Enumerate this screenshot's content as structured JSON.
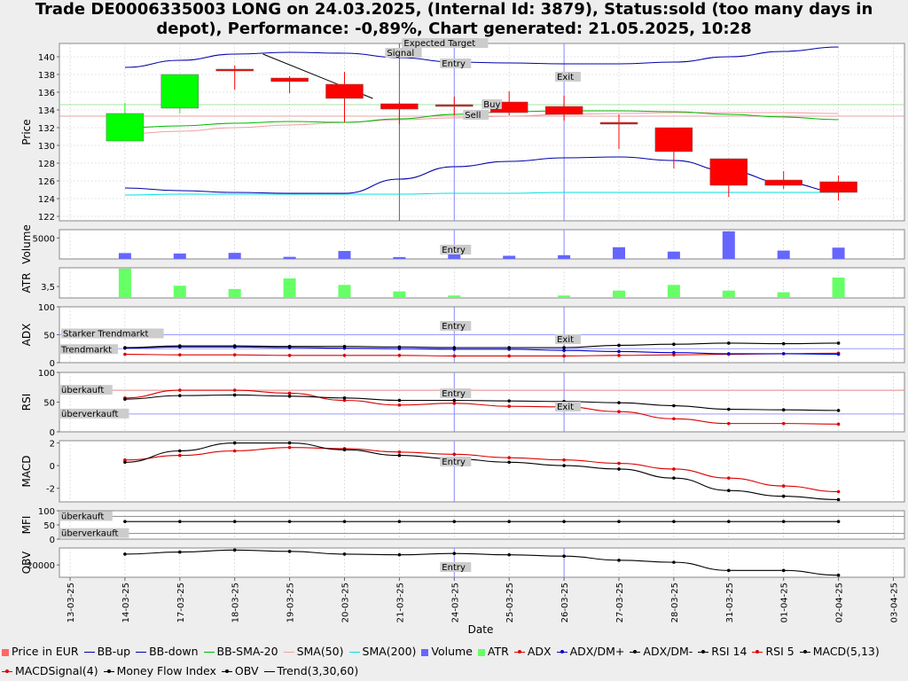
{
  "title": "Trade DE0006335003 LONG on 24.03.2025, (Internal Id: 3879), Status:sold (too many days in depot), Performance: -0,89%, Chart generated: 21.05.2025, 10:28",
  "chart_data": {
    "type": "candlestick",
    "xlabel": "Date",
    "dates": [
      "13-03-25",
      "14-03-25",
      "17-03-25",
      "18-03-25",
      "19-03-25",
      "20-03-25",
      "21-03-25",
      "24-03-25",
      "25-03-25",
      "26-03-25",
      "27-03-25",
      "28-03-25",
      "31-03-25",
      "01-04-25",
      "02-04-25",
      "03-04-25"
    ],
    "price": {
      "ylabel": "Price",
      "ylim": [
        121.5,
        141.5
      ],
      "ticks": [
        122,
        124,
        126,
        128,
        130,
        132,
        134,
        136,
        138,
        140
      ],
      "candles": [
        {
          "date": "14-03-25",
          "open": 130.5,
          "close": 133.6,
          "high": 134.8,
          "low": 130.5
        },
        {
          "date": "17-03-25",
          "open": 134.2,
          "close": 138.0,
          "high": 138.0,
          "low": 133.6
        },
        {
          "date": "18-03-25",
          "open": 138.6,
          "close": 138.4,
          "high": 139.0,
          "low": 136.3
        },
        {
          "date": "19-03-25",
          "open": 137.6,
          "close": 137.2,
          "high": 137.8,
          "low": 135.9
        },
        {
          "date": "20-03-25",
          "open": 136.9,
          "close": 135.3,
          "high": 138.3,
          "low": 132.6
        },
        {
          "date": "21-03-25",
          "open": 134.7,
          "close": 134.1,
          "high": 134.9,
          "low": 132.4
        },
        {
          "date": "24-03-25",
          "open": 134.6,
          "close": 134.5,
          "high": 135.5,
          "low": 133.4
        },
        {
          "date": "25-03-25",
          "open": 134.9,
          "close": 133.7,
          "high": 136.1,
          "low": 133.4
        },
        {
          "date": "26-03-25",
          "open": 134.4,
          "close": 133.5,
          "high": 135.6,
          "low": 132.8
        },
        {
          "date": "27-03-25",
          "open": 132.6,
          "close": 132.4,
          "high": 133.5,
          "low": 129.6
        },
        {
          "date": "28-03-25",
          "open": 132.0,
          "close": 129.3,
          "high": 132.0,
          "low": 127.4
        },
        {
          "date": "31-03-25",
          "open": 128.5,
          "close": 125.5,
          "high": 128.5,
          "low": 124.2
        },
        {
          "date": "01-04-25",
          "open": 126.1,
          "close": 125.5,
          "high": 127.1,
          "low": 125.1
        },
        {
          "date": "02-04-25",
          "open": 125.9,
          "close": 124.7,
          "high": 126.6,
          "low": 123.8
        }
      ],
      "bb_up": [
        138.8,
        139.6,
        140.3,
        140.5,
        140.4,
        139.9,
        139.4,
        139.3,
        139.2,
        139.2,
        139.4,
        140.0,
        140.6,
        141.1
      ],
      "bb_down": [
        125.2,
        124.9,
        124.7,
        124.6,
        124.6,
        126.2,
        127.6,
        128.2,
        128.6,
        128.7,
        128.3,
        127.1,
        125.8,
        124.8
      ],
      "bb_sma20": [
        132.0,
        132.2,
        132.5,
        132.7,
        132.6,
        133.0,
        133.5,
        133.8,
        133.9,
        133.9,
        133.8,
        133.5,
        133.2,
        132.9
      ],
      "sma50": [
        131.3,
        131.6,
        132.0,
        132.3,
        132.6,
        132.9,
        133.1,
        133.3,
        133.5,
        133.6,
        133.7,
        133.7,
        133.7,
        133.6
      ],
      "sma200": [
        124.4,
        124.5,
        124.5,
        124.5,
        124.5,
        124.5,
        124.6,
        124.6,
        124.7,
        124.7,
        124.7,
        124.7,
        124.7,
        124.7
      ],
      "hlines": [
        134.6,
        133.3
      ],
      "trend_line": [
        {
          "date": "19-03-25",
          "value": 140.3
        },
        {
          "date": "21-03-25",
          "value": 135.3
        }
      ],
      "annotations": [
        "Expected Target",
        "Signal",
        "Entry",
        "Exit",
        "Buy",
        "Sell"
      ]
    },
    "volume": {
      "ylabel": "Volume",
      "ticks": [
        5000
      ],
      "values": [
        1400,
        1300,
        1450,
        500,
        1900,
        450,
        1200,
        750,
        900,
        2800,
        1750,
        6600,
        2000,
        2700
      ]
    },
    "atr": {
      "ylabel": "ATR",
      "ticks": [
        3.5
      ],
      "values": [
        4.6,
        3.55,
        3.35,
        4.0,
        3.6,
        3.2,
        2.95,
        2.85,
        2.95,
        3.25,
        3.6,
        3.25,
        3.15,
        4.05
      ]
    },
    "adx": {
      "ylabel": "ADX",
      "ylim": [
        0,
        100
      ],
      "ticks": [
        0,
        50,
        100
      ],
      "levels": [
        {
          "label": "Starker Trendmarkt",
          "value": 50
        },
        {
          "label": "Trendmarkt",
          "value": 25
        }
      ],
      "adx": [
        15,
        14,
        14,
        13,
        13,
        13,
        12,
        12,
        12,
        13,
        14,
        15,
        16,
        17
      ],
      "dm_plus": [
        26,
        28,
        28,
        27,
        26,
        25,
        24,
        24,
        22,
        20,
        18,
        16,
        16,
        15
      ],
      "dm_minus": [
        27,
        30,
        30,
        29,
        29,
        28,
        27,
        27,
        27,
        31,
        33,
        35,
        34,
        35
      ],
      "annotations": [
        "Entry",
        "Exit"
      ]
    },
    "rsi": {
      "ylabel": "RSI",
      "ylim": [
        0,
        100
      ],
      "ticks": [
        0,
        50,
        100
      ],
      "levels": [
        {
          "label": "überkauft",
          "value": 70
        },
        {
          "label": "überverkauft",
          "value": 30
        }
      ],
      "rsi14": [
        55,
        61,
        62,
        60,
        57,
        53,
        53,
        52,
        51,
        49,
        44,
        38,
        37,
        36
      ],
      "rsi5": [
        57,
        70,
        70,
        65,
        53,
        45,
        48,
        43,
        42,
        34,
        22,
        14,
        14,
        13
      ],
      "annotations": [
        "Entry",
        "Exit"
      ]
    },
    "macd": {
      "ylabel": "MACD",
      "ylim": [
        -3.2,
        2.2
      ],
      "ticks": [
        -2,
        0,
        2
      ],
      "macd": [
        0.3,
        1.3,
        2.0,
        2.0,
        1.4,
        0.9,
        0.6,
        0.3,
        0.0,
        -0.3,
        -1.1,
        -2.2,
        -2.7,
        -3.0
      ],
      "signal": [
        0.5,
        0.9,
        1.3,
        1.6,
        1.5,
        1.2,
        1.0,
        0.7,
        0.5,
        0.2,
        -0.3,
        -1.1,
        -1.8,
        -2.3
      ],
      "annotations": [
        "Entry"
      ]
    },
    "mfi": {
      "ylabel": "MFI",
      "ylim": [
        0,
        100
      ],
      "ticks": [
        0,
        50,
        100
      ],
      "levels": [
        {
          "label": "überkauft",
          "value": 80
        },
        {
          "label": "überverkauft",
          "value": 20
        }
      ],
      "values": [
        62,
        62,
        62,
        62,
        62,
        62,
        62,
        62,
        62,
        62,
        62,
        62,
        62,
        62
      ]
    },
    "obv": {
      "ylabel": "OBV",
      "ticks": [
        20000
      ],
      "values": [
        28000,
        29500,
        31000,
        30000,
        28000,
        27500,
        28500,
        27500,
        26500,
        23500,
        22000,
        16000,
        16000,
        12500
      ],
      "annotations": [
        "Entry"
      ]
    },
    "legend": [
      "Price in EUR",
      "BB-up",
      "BB-down",
      "BB-SMA-20",
      "SMA(50)",
      "SMA(200)",
      "Volume",
      "ATR",
      "ADX",
      "ADX/DM+",
      "ADX/DM-",
      "RSI 14",
      "RSI 5",
      "MACD(5,13)",
      "MACDSignal(4)",
      "Money Flow Index",
      "OBV",
      "Trend(3,30,60)"
    ],
    "colors": {
      "up": "#00ff00",
      "down": "#ff0000",
      "bb": "#0000aa",
      "bb_sma": "#00bb00",
      "sma50": "#f0a0a0",
      "sma200": "#00e0e0",
      "volume": "#6666ff",
      "atr": "#66ff66",
      "red": "#dd0000",
      "blue": "#0000cc",
      "black": "#000000",
      "grid": "#cccccc",
      "marker": "#8888ff",
      "level": "#9999ff",
      "redlevel": "#dd8888"
    }
  },
  "legend_items": [
    {
      "label": "Price in EUR",
      "kind": "sw",
      "color": "#ff6666"
    },
    {
      "label": "BB-up",
      "kind": "ln",
      "color": "#0000aa"
    },
    {
      "label": "BB-down",
      "kind": "ln",
      "color": "#0000aa"
    },
    {
      "label": "BB-SMA-20",
      "kind": "ln",
      "color": "#00bb00"
    },
    {
      "label": "SMA(50)",
      "kind": "ln",
      "color": "#f0a0a0"
    },
    {
      "label": "SMA(200)",
      "kind": "ln",
      "color": "#00e0e0"
    },
    {
      "label": "Volume",
      "kind": "sw",
      "color": "#6666ff"
    },
    {
      "label": "ATR",
      "kind": "sw",
      "color": "#66ff66"
    },
    {
      "label": "ADX",
      "kind": "dot",
      "color": "#dd0000"
    },
    {
      "label": "ADX/DM+",
      "kind": "dot",
      "color": "#0000cc"
    },
    {
      "label": "ADX/DM-",
      "kind": "dot",
      "color": "#000000"
    },
    {
      "label": "RSI 14",
      "kind": "dot",
      "color": "#000000"
    },
    {
      "label": "RSI 5",
      "kind": "dot",
      "color": "#dd0000"
    },
    {
      "label": "MACD(5,13)",
      "kind": "dot",
      "color": "#000000"
    },
    {
      "label": "MACDSignal(4)",
      "kind": "dot",
      "color": "#dd0000"
    },
    {
      "label": "Money Flow Index",
      "kind": "dot",
      "color": "#000000"
    },
    {
      "label": "OBV",
      "kind": "dot",
      "color": "#000000"
    },
    {
      "label": "Trend(3,30,60)",
      "kind": "ln",
      "color": "#000000"
    }
  ]
}
